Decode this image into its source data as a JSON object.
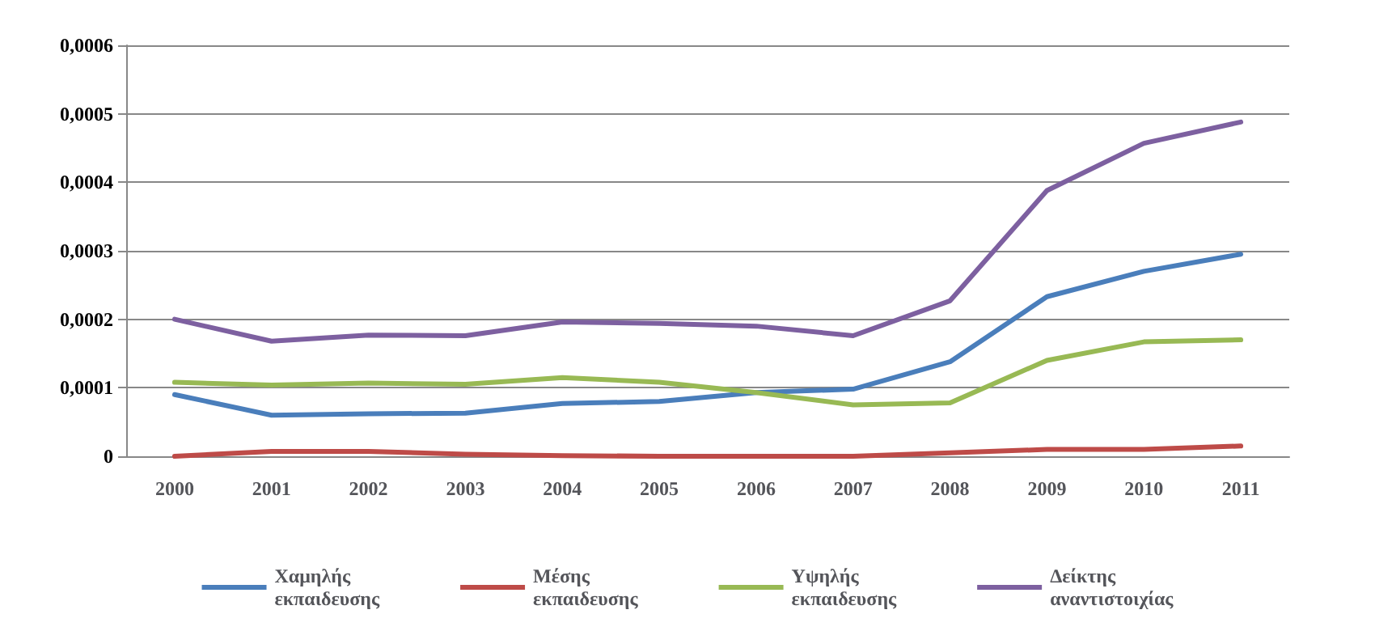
{
  "chart_data": {
    "type": "line",
    "categories": [
      "2000",
      "2001",
      "2002",
      "2003",
      "2004",
      "2005",
      "2006",
      "2007",
      "2008",
      "2009",
      "2010",
      "2011"
    ],
    "series": [
      {
        "name": "Χαμηλής\nεκπαιδευσης",
        "color": "#4a7ebb",
        "values": [
          9e-05,
          6e-05,
          6.2e-05,
          6.3e-05,
          7.7e-05,
          8e-05,
          9.3e-05,
          9.8e-05,
          0.000138,
          0.000233,
          0.00027,
          0.000295
        ]
      },
      {
        "name": "Μέσης\nεκπαιδευσης",
        "color": "#be4b48",
        "values": [
          0,
          7e-06,
          7e-06,
          3e-06,
          1e-06,
          0,
          0,
          0,
          5e-06,
          1e-05,
          1e-05,
          1.5e-05
        ]
      },
      {
        "name": "Υψηλής\nεκπαιδευσης",
        "color": "#98b954",
        "values": [
          0.000108,
          0.000104,
          0.000107,
          0.000105,
          0.000115,
          0.000108,
          9.3e-05,
          7.5e-05,
          7.8e-05,
          0.00014,
          0.000167,
          0.00017
        ]
      },
      {
        "name": "Δείκτης\nαναντιστοιχίας",
        "color": "#7d60a0",
        "values": [
          0.0002,
          0.000168,
          0.000177,
          0.000176,
          0.000196,
          0.000194,
          0.00019,
          0.000176,
          0.000227,
          0.000388,
          0.000457,
          0.000488
        ]
      }
    ],
    "ylim": [
      0,
      0.0006
    ],
    "yticks": [
      0,
      {
        "value": 0.0001,
        "label": "0,0001"
      },
      {
        "value": 0.0002,
        "label": "0,0002"
      },
      {
        "value": 0.0003,
        "label": "0,0003"
      },
      {
        "value": 0.0004,
        "label": "0,0004"
      },
      {
        "value": 0.0005,
        "label": "0,0005"
      },
      {
        "value": 0.0006,
        "label": "0,0006"
      }
    ],
    "grid": "y",
    "legend": "bottom",
    "marker": "none",
    "line_style": "solid"
  }
}
